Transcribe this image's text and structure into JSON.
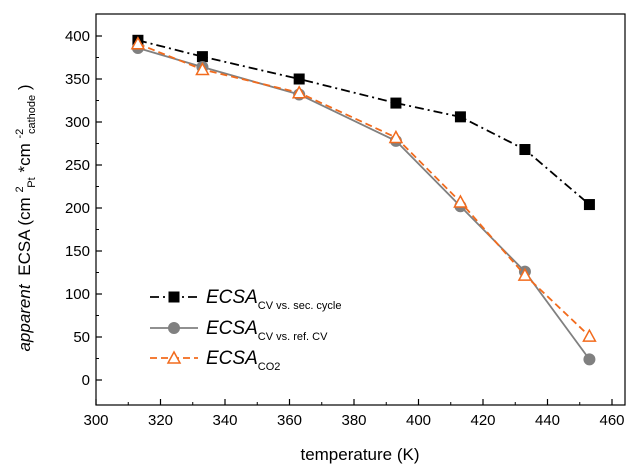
{
  "chart_data": {
    "type": "line",
    "xlabel": "temperature (K)",
    "ylabel": {
      "prefix": "apparent",
      "main": "ECSA (cm",
      "sup1": "2",
      "sub1": "Pt",
      "mid": "*cm",
      "sup2": "-2",
      "sub2": "cathode",
      "suffix": ")"
    },
    "xlim": [
      300,
      460
    ],
    "ylim": [
      0,
      400
    ],
    "xticks": [
      300,
      320,
      340,
      360,
      380,
      400,
      420,
      440,
      460
    ],
    "yticks": [
      0,
      50,
      100,
      150,
      200,
      250,
      300,
      350,
      400
    ],
    "grid": false,
    "legend_position": "lower-left",
    "series": [
      {
        "name": "ECSA",
        "name_sub": "CV vs. sec. cycle",
        "color": "#000000",
        "linestyle": "dashdot",
        "marker": "square",
        "x": [
          313,
          333,
          363,
          393,
          413,
          433,
          453
        ],
        "y": [
          395,
          376,
          350,
          322,
          306,
          268,
          204
        ]
      },
      {
        "name": "ECSA",
        "name_sub": "CV vs. ref. CV",
        "color": "#808080",
        "linestyle": "solid",
        "marker": "circle",
        "x": [
          313,
          333,
          363,
          393,
          413,
          433,
          453
        ],
        "y": [
          386,
          364,
          332,
          278,
          202,
          126,
          24
        ]
      },
      {
        "name": "ECSA",
        "name_sub": "CO2",
        "color": "#f26b1d",
        "linestyle": "dashed",
        "marker": "triangle-open",
        "x": [
          313,
          333,
          363,
          393,
          413,
          433,
          453
        ],
        "y": [
          391,
          361,
          334,
          282,
          207,
          122,
          51
        ]
      }
    ]
  }
}
